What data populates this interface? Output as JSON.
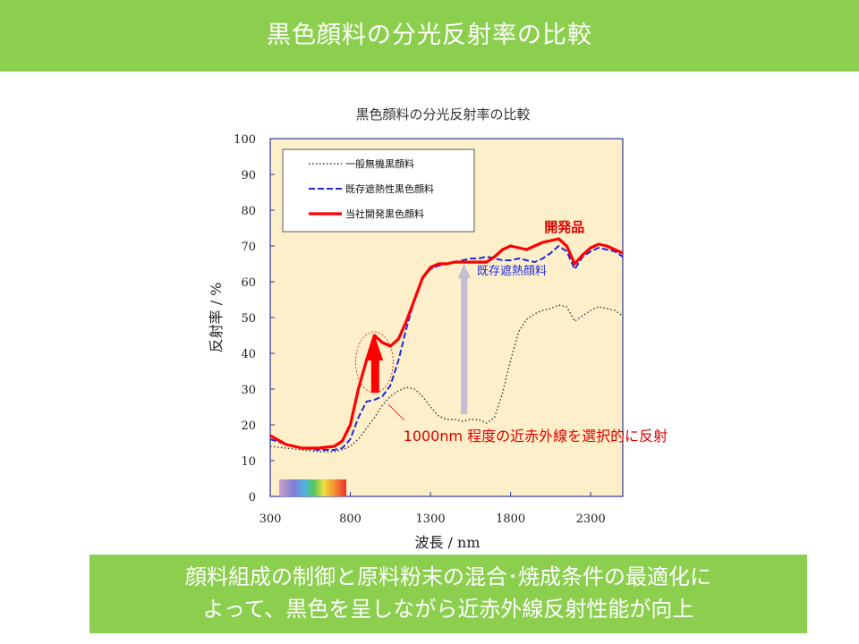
{
  "slide": {
    "title": "黒色顔料の分光反射率の比較",
    "footer_line1": "顔料組成の制御と原料粉末の混合･焼成条件の最適化に",
    "footer_line2": "よって、黒色を呈しながら近赤外線反射性能が向上"
  },
  "chart_data": {
    "type": "line",
    "title": "黒色顔料の分光反射率の比較",
    "xlabel": "波長 / nm",
    "ylabel": "反射率 / %",
    "xlim": [
      300,
      2500
    ],
    "ylim": [
      0,
      100
    ],
    "xticks": [
      300,
      800,
      1300,
      1800,
      2300
    ],
    "yticks": [
      0,
      10,
      20,
      30,
      40,
      50,
      60,
      70,
      80,
      90,
      100
    ],
    "grid": false,
    "legend_position": "top-left",
    "plot_background": "#fdefc9",
    "series": [
      {
        "name": "一般無機黒顔料",
        "color": "#333333",
        "style": "dotted",
        "x": [
          300,
          400,
          500,
          600,
          700,
          750,
          800,
          850,
          900,
          950,
          1000,
          1050,
          1100,
          1150,
          1200,
          1250,
          1300,
          1350,
          1400,
          1450,
          1500,
          1550,
          1600,
          1650,
          1700,
          1750,
          1800,
          1850,
          1900,
          1950,
          2000,
          2050,
          2100,
          2150,
          2200,
          2250,
          2300,
          2350,
          2400,
          2450,
          2500
        ],
        "y": [
          14,
          13.5,
          13,
          12.5,
          12.5,
          13,
          14,
          16,
          19,
          22,
          25.5,
          28,
          29.5,
          30.5,
          30,
          28,
          25,
          22.5,
          21.5,
          21.5,
          21,
          21.5,
          21.5,
          20.5,
          22,
          29,
          38,
          46,
          49.5,
          51,
          52,
          52.5,
          53.5,
          53,
          49,
          50.5,
          52,
          53,
          52.5,
          52,
          50.5
        ]
      },
      {
        "name": "既存遮熱性黒色顔料",
        "color": "#1f2bd6",
        "style": "dashed",
        "x": [
          300,
          400,
          500,
          600,
          700,
          750,
          800,
          850,
          900,
          950,
          1000,
          1050,
          1100,
          1150,
          1200,
          1250,
          1300,
          1350,
          1400,
          1450,
          1500,
          1550,
          1600,
          1650,
          1700,
          1750,
          1800,
          1850,
          1900,
          1950,
          2000,
          2050,
          2100,
          2150,
          2200,
          2250,
          2300,
          2350,
          2400,
          2450,
          2500
        ],
        "y": [
          16,
          14.5,
          13.5,
          13,
          13,
          13.5,
          16,
          22,
          26.5,
          27,
          28,
          31,
          38,
          47,
          55,
          61,
          63.5,
          64.5,
          65,
          65.5,
          66,
          66.5,
          66.5,
          67,
          66.5,
          66,
          66,
          66.5,
          66,
          65.5,
          66.5,
          68,
          70,
          68.5,
          63.5,
          67,
          68.5,
          69.5,
          69,
          68.5,
          67
        ]
      },
      {
        "name": "当社開発黒色顔料",
        "color": "#ff0000",
        "style": "solid",
        "x": [
          300,
          400,
          500,
          600,
          700,
          750,
          800,
          850,
          900,
          950,
          1000,
          1050,
          1100,
          1150,
          1200,
          1250,
          1300,
          1350,
          1400,
          1450,
          1500,
          1550,
          1600,
          1650,
          1700,
          1750,
          1800,
          1850,
          1900,
          1950,
          2000,
          2050,
          2100,
          2150,
          2200,
          2250,
          2300,
          2350,
          2400,
          2450,
          2500
        ],
        "y": [
          17,
          14.5,
          13.5,
          13.5,
          14,
          15.5,
          20,
          30,
          38,
          45,
          43,
          42,
          44,
          49,
          55,
          61,
          64,
          65,
          65,
          65.5,
          65.5,
          65.5,
          65.5,
          65.5,
          67,
          69,
          70,
          69.5,
          69,
          70,
          71,
          71.5,
          72,
          70,
          65,
          67.5,
          69.5,
          70.5,
          70,
          69,
          68
        ]
      }
    ],
    "annotations": [
      {
        "text": "開発品",
        "color": "#e00000",
        "at": [
          2010,
          74
        ]
      },
      {
        "text": "既存遮熱顔料",
        "color": "#1f2bd6",
        "at": [
          1590,
          62
        ]
      },
      {
        "text": "1000nm 程度の近赤外線を選択的に反射",
        "color": "#e00000",
        "at": [
          1130,
          15.5
        ]
      }
    ]
  }
}
